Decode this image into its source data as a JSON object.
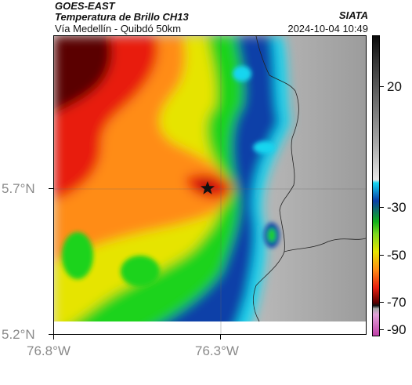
{
  "header": {
    "agency": "GOES-EAST",
    "product": "Temperatura de Brillo CH13",
    "location": "Vía Medellín - Quibdó 50km",
    "org": "SIATA",
    "timestamp": "2024-10-04 10:49"
  },
  "axes": {
    "lat_ticks": [
      "5.7°N",
      "5.2°N"
    ],
    "lon_ticks": [
      "76.8°W",
      "76.3°W"
    ]
  },
  "colorbar": {
    "labels": [
      "20",
      "-30",
      "-50",
      "-70",
      "-90"
    ]
  },
  "map": {
    "marker": "star-marker",
    "colors": {
      "dark_red": "#5a0000",
      "red": "#e81e10",
      "orange": "#ff8c14",
      "yellow": "#e6e400",
      "green": "#1ed31e",
      "cyan": "#16d6f0",
      "blue": "#0b3fa8",
      "gray": "#cfcfcf"
    }
  }
}
